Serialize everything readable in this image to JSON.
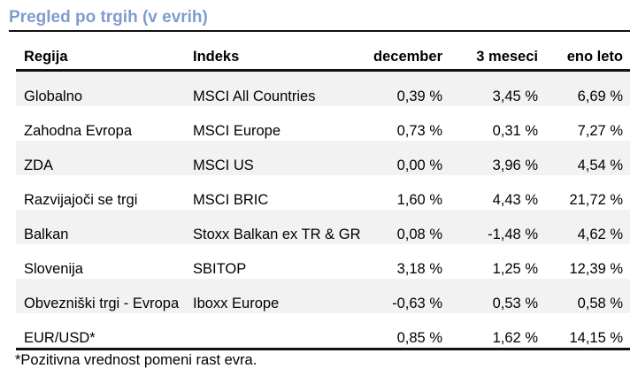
{
  "title": "Pregled po trgih (v evrih)",
  "table": {
    "headers": [
      "Regija",
      "Indeks",
      "december",
      "3 meseci",
      "eno leto"
    ],
    "rows": [
      [
        "Globalno",
        "MSCI All Countries",
        "0,39 %",
        "3,45 %",
        "6,69 %"
      ],
      [
        "Zahodna Evropa",
        "MSCI Europe",
        "0,73 %",
        "0,31 %",
        "7,27 %"
      ],
      [
        "ZDA",
        "MSCI US",
        "0,00 %",
        "3,96 %",
        "4,54 %"
      ],
      [
        "Razvijajoči se trgi",
        "MSCI BRIC",
        "1,60 %",
        "4,43 %",
        "21,72 %"
      ],
      [
        "Balkan",
        "Stoxx Balkan ex TR & GR",
        "0,08 %",
        "-1,48 %",
        "4,62 %"
      ],
      [
        "Slovenija",
        "SBITOP",
        "3,18 %",
        "1,25 %",
        "12,39 %"
      ],
      [
        "Obvezniški trgi - Evropa",
        "Iboxx Europe",
        "-0,63 %",
        "0,53 %",
        "0,58 %"
      ],
      [
        "EUR/USD*",
        "",
        "0,85 %",
        "1,62 %",
        "14,15 %"
      ]
    ]
  },
  "footnote": "*Pozitivna vrednost pomeni rast evra."
}
